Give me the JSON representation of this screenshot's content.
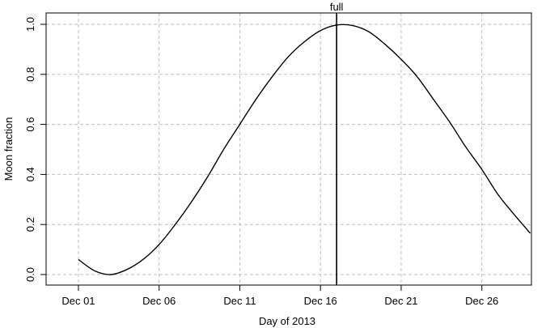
{
  "chart_data": {
    "type": "line",
    "title": "",
    "xlabel": "Day of 2013",
    "ylabel": "Moon fraction",
    "xlim": [
      "2013-11-30",
      "2013-12-30"
    ],
    "ylim": [
      0,
      1
    ],
    "grid": true,
    "x_ticks": [
      {
        "date": "2013-12-01",
        "label": "Dec 01"
      },
      {
        "date": "2013-12-06",
        "label": "Dec 06"
      },
      {
        "date": "2013-12-11",
        "label": "Dec 11"
      },
      {
        "date": "2013-12-16",
        "label": "Dec 16"
      },
      {
        "date": "2013-12-21",
        "label": "Dec 21"
      },
      {
        "date": "2013-12-26",
        "label": "Dec 26"
      }
    ],
    "y_ticks": [
      "0.0",
      "0.2",
      "0.4",
      "0.6",
      "0.8",
      "1.0"
    ],
    "series": [
      {
        "values": [
          {
            "x": "2013-12-01",
            "y": 0.06
          },
          {
            "x": "2013-12-02",
            "y": 0.015
          },
          {
            "x": "2013-12-03",
            "y": 0.0
          },
          {
            "x": "2013-12-04",
            "y": 0.02
          },
          {
            "x": "2013-12-05",
            "y": 0.06
          },
          {
            "x": "2013-12-06",
            "y": 0.12
          },
          {
            "x": "2013-12-07",
            "y": 0.2
          },
          {
            "x": "2013-12-08",
            "y": 0.29
          },
          {
            "x": "2013-12-09",
            "y": 0.39
          },
          {
            "x": "2013-12-10",
            "y": 0.5
          },
          {
            "x": "2013-12-11",
            "y": 0.6
          },
          {
            "x": "2013-12-12",
            "y": 0.7
          },
          {
            "x": "2013-12-13",
            "y": 0.79
          },
          {
            "x": "2013-12-14",
            "y": 0.87
          },
          {
            "x": "2013-12-15",
            "y": 0.93
          },
          {
            "x": "2013-12-16",
            "y": 0.975
          },
          {
            "x": "2013-12-17",
            "y": 0.997
          },
          {
            "x": "2013-12-18",
            "y": 0.995
          },
          {
            "x": "2013-12-19",
            "y": 0.97
          },
          {
            "x": "2013-12-20",
            "y": 0.92
          },
          {
            "x": "2013-12-21",
            "y": 0.86
          },
          {
            "x": "2013-12-22",
            "y": 0.79
          },
          {
            "x": "2013-12-23",
            "y": 0.7
          },
          {
            "x": "2013-12-24",
            "y": 0.61
          },
          {
            "x": "2013-12-25",
            "y": 0.51
          },
          {
            "x": "2013-12-26",
            "y": 0.42
          },
          {
            "x": "2013-12-27",
            "y": 0.32
          },
          {
            "x": "2013-12-28",
            "y": 0.24
          },
          {
            "x": "2013-12-29",
            "y": 0.165
          }
        ]
      }
    ],
    "annotations": [
      {
        "type": "vline",
        "x": "2013-12-17",
        "label": "full"
      }
    ]
  }
}
